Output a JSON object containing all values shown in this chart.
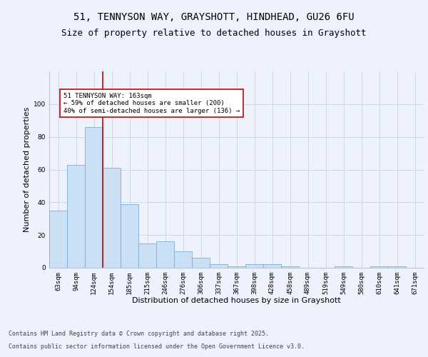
{
  "title_line1": "51, TENNYSON WAY, GRAYSHOTT, HINDHEAD, GU26 6FU",
  "title_line2": "Size of property relative to detached houses in Grayshott",
  "xlabel": "Distribution of detached houses by size in Grayshott",
  "ylabel": "Number of detached properties",
  "categories": [
    "63sqm",
    "94sqm",
    "124sqm",
    "154sqm",
    "185sqm",
    "215sqm",
    "246sqm",
    "276sqm",
    "306sqm",
    "337sqm",
    "367sqm",
    "398sqm",
    "428sqm",
    "458sqm",
    "489sqm",
    "519sqm",
    "549sqm",
    "580sqm",
    "610sqm",
    "641sqm",
    "671sqm"
  ],
  "values": [
    35,
    63,
    86,
    61,
    39,
    15,
    16,
    10,
    6,
    2,
    1,
    2,
    2,
    1,
    0,
    0,
    1,
    0,
    1,
    1,
    0
  ],
  "bar_color": "#cce0f5",
  "bar_edge_color": "#7aafd4",
  "grid_color": "#d0d8e8",
  "background_color": "#eef2fc",
  "annotation_box_text": "51 TENNYSON WAY: 163sqm\n← 59% of detached houses are smaller (200)\n40% of semi-detached houses are larger (136) →",
  "annotation_box_color": "#ffffff",
  "annotation_box_edge_color": "#cc0000",
  "vline_index": 2.5,
  "vline_color": "#cc0000",
  "ylim": [
    0,
    120
  ],
  "yticks": [
    0,
    20,
    40,
    60,
    80,
    100
  ],
  "footer_line1": "Contains HM Land Registry data © Crown copyright and database right 2025.",
  "footer_line2": "Contains public sector information licensed under the Open Government Licence v3.0.",
  "title_fontsize": 10,
  "subtitle_fontsize": 9,
  "axis_label_fontsize": 8,
  "tick_fontsize": 6.5,
  "annotation_fontsize": 6.5,
  "footer_fontsize": 6
}
